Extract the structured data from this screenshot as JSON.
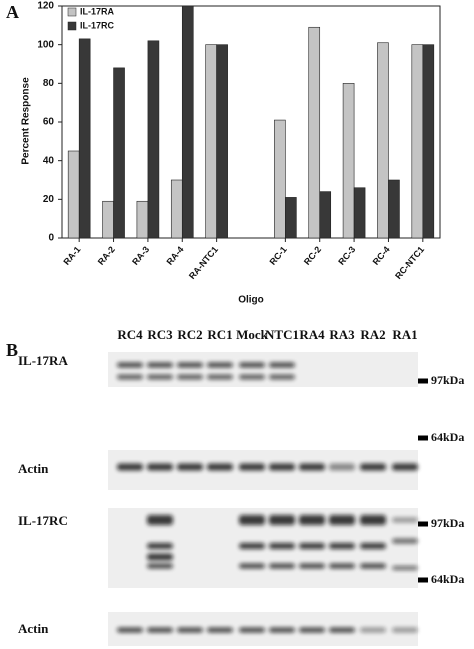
{
  "panel_a_label": "A",
  "chart_data": {
    "type": "bar",
    "ylabel": "Percent Response",
    "xlabel": "Oligo",
    "categories": [
      "RA-1",
      "RA-2",
      "RA-3",
      "RA-4",
      "RA-NTC1",
      null,
      "RC-1",
      "RC-2",
      "RC-3",
      "RC-4",
      "RC-NTC1"
    ],
    "series": [
      {
        "name": "IL-17RA",
        "color": "#c4c4c4",
        "values": [
          45,
          19,
          19,
          30,
          100,
          null,
          61,
          109,
          80,
          101,
          100
        ]
      },
      {
        "name": "IL-17RC",
        "color": "#383838",
        "values": [
          103,
          88,
          102,
          120,
          100,
          null,
          21,
          24,
          26,
          30,
          100
        ]
      }
    ],
    "ylim": [
      0,
      120
    ],
    "yticks": [
      0,
      20,
      40,
      60,
      80,
      100,
      120
    ],
    "grid": false,
    "legend": "top-left"
  },
  "panel_b": {
    "label": "B",
    "lanes": [
      "RC4",
      "RC3",
      "RC2",
      "RC1",
      "Mock",
      "NTC1",
      "RA4",
      "RA3",
      "RA2",
      "RA1"
    ],
    "rows": [
      "IL-17RA",
      "Actin",
      "IL-17RC",
      "Actin"
    ],
    "markers": [
      "97kDa",
      "64kDa",
      "97kDa",
      "64kDa"
    ]
  }
}
